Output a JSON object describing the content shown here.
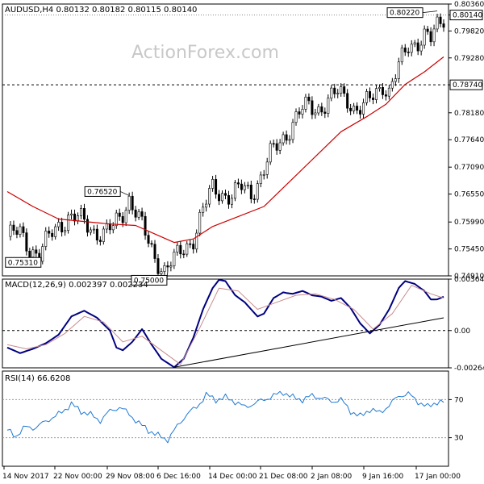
{
  "watermark": "ActionForex.com",
  "chart_data": [
    {
      "type": "candlestick",
      "title": "AUDUSD,H4  0.80132 0.80182 0.80115 0.80140",
      "ylim": [
        0.7491,
        0.8036
      ],
      "yticks": [
        0.8036,
        0.8014,
        0.7982,
        0.7928,
        0.7874,
        0.7818,
        0.7764,
        0.7709,
        0.7655,
        0.7599,
        0.7545,
        0.7491
      ],
      "ytick_labels": [
        "0.80360",
        "0.80140",
        "0.79820",
        "0.79280",
        "0.78740",
        "0.78180",
        "0.77640",
        "0.77090",
        "0.76550",
        "0.75990",
        "0.75450",
        "0.74910"
      ],
      "x_categories": [
        "14 Nov 2017",
        "22 Nov 00:00",
        "29 Nov 08:00",
        "6 Dec 16:00",
        "14 Dec 00:00",
        "21 Dec 08:00",
        "2 Jan 08:00",
        "9 Jan 16:00",
        "17 Jan 00:00"
      ],
      "price_path": [
        [
          0,
          0.757
        ],
        [
          4,
          0.7575
        ],
        [
          7,
          0.755
        ],
        [
          10,
          0.7533
        ],
        [
          13,
          0.7565
        ],
        [
          16,
          0.7595
        ],
        [
          19,
          0.761
        ],
        [
          23,
          0.76
        ],
        [
          27,
          0.7585
        ],
        [
          30,
          0.7575
        ],
        [
          33,
          0.7585
        ],
        [
          36,
          0.762
        ],
        [
          38,
          0.765
        ],
        [
          40,
          0.762
        ],
        [
          43,
          0.757
        ],
        [
          46,
          0.753
        ],
        [
          49,
          0.7505
        ],
        [
          52,
          0.752
        ],
        [
          55,
          0.7545
        ],
        [
          58,
          0.757
        ],
        [
          61,
          0.762
        ],
        [
          64,
          0.7665
        ],
        [
          67,
          0.766
        ],
        [
          70,
          0.765
        ],
        [
          73,
          0.7665
        ],
        [
          76,
          0.766
        ],
        [
          79,
          0.769
        ],
        [
          82,
          0.773
        ],
        [
          85,
          0.776
        ],
        [
          88,
          0.779
        ],
        [
          91,
          0.7815
        ],
        [
          94,
          0.783
        ],
        [
          97,
          0.783
        ],
        [
          100,
          0.784
        ],
        [
          103,
          0.7855
        ],
        [
          106,
          0.785
        ],
        [
          108,
          0.783
        ],
        [
          111,
          0.7825
        ],
        [
          114,
          0.785
        ],
        [
          117,
          0.788
        ],
        [
          119,
          0.786
        ],
        [
          122,
          0.7905
        ],
        [
          125,
          0.7955
        ],
        [
          128,
          0.7965
        ],
        [
          130,
          0.797
        ],
        [
          132,
          0.796
        ],
        [
          134,
          0.799
        ],
        [
          136,
          0.8014
        ]
      ],
      "moving_average": [
        [
          0,
          0.766
        ],
        [
          8,
          0.763
        ],
        [
          16,
          0.7605
        ],
        [
          24,
          0.76
        ],
        [
          32,
          0.7595
        ],
        [
          40,
          0.7592
        ],
        [
          46,
          0.7575
        ],
        [
          52,
          0.7558
        ],
        [
          58,
          0.7565
        ],
        [
          64,
          0.759
        ],
        [
          72,
          0.761
        ],
        [
          80,
          0.763
        ],
        [
          88,
          0.768
        ],
        [
          96,
          0.773
        ],
        [
          104,
          0.778
        ],
        [
          112,
          0.781
        ],
        [
          118,
          0.7835
        ],
        [
          124,
          0.7875
        ],
        [
          130,
          0.79
        ],
        [
          136,
          0.793
        ]
      ],
      "horizontal_line": {
        "value": 0.7874,
        "label": "0.78740",
        "style": "dashed"
      },
      "annotations": [
        {
          "label": "0.80220",
          "x": 134,
          "value": 0.8022
        },
        {
          "label": "0.76520",
          "x": 38,
          "value": 0.7652
        },
        {
          "label": "0.75310",
          "x": 10,
          "value": 0.7531
        },
        {
          "label": "0.75000",
          "x": 50,
          "value": 0.75
        }
      ]
    },
    {
      "type": "line",
      "title": "MACD(12,26,9) 0.002397 0.002234",
      "ylim": [
        -0.00264,
        0.00364
      ],
      "ytick_labels": [
        "0.00364",
        "0.00",
        "-0.00264"
      ],
      "series": [
        {
          "name": "MACD",
          "points": [
            [
              0,
              -0.0012
            ],
            [
              4,
              -0.0016
            ],
            [
              8,
              -0.0013
            ],
            [
              12,
              -0.0009
            ],
            [
              16,
              -0.0003
            ],
            [
              20,
              0.001
            ],
            [
              24,
              0.0014
            ],
            [
              28,
              0.0009
            ],
            [
              32,
              0.0
            ],
            [
              34,
              -0.0012
            ],
            [
              36,
              -0.0014
            ],
            [
              39,
              -0.0008
            ],
            [
              42,
              0.0001
            ],
            [
              45,
              -0.001
            ],
            [
              48,
              -0.002
            ],
            [
              52,
              -0.0026
            ],
            [
              55,
              -0.002
            ],
            [
              58,
              -0.0005
            ],
            [
              61,
              0.0015
            ],
            [
              64,
              0.003
            ],
            [
              66,
              0.0036
            ],
            [
              68,
              0.0035
            ],
            [
              71,
              0.0025
            ],
            [
              74,
              0.002
            ],
            [
              76,
              0.0015
            ],
            [
              78,
              0.001
            ],
            [
              80,
              0.0012
            ],
            [
              83,
              0.0023
            ],
            [
              86,
              0.0027
            ],
            [
              89,
              0.0026
            ],
            [
              92,
              0.0028
            ],
            [
              95,
              0.0025
            ],
            [
              98,
              0.0024
            ],
            [
              101,
              0.0021
            ],
            [
              104,
              0.0023
            ],
            [
              107,
              0.0016
            ],
            [
              110,
              0.0005
            ],
            [
              113,
              -0.0002
            ],
            [
              116,
              0.0004
            ],
            [
              119,
              0.0015
            ],
            [
              122,
              0.003
            ],
            [
              124,
              0.0035
            ],
            [
              127,
              0.0033
            ],
            [
              130,
              0.0028
            ],
            [
              132,
              0.0022
            ],
            [
              134,
              0.0022
            ],
            [
              136,
              0.0024
            ]
          ]
        },
        {
          "name": "Signal",
          "points": [
            [
              0,
              -0.001
            ],
            [
              6,
              -0.0013
            ],
            [
              12,
              -0.001
            ],
            [
              18,
              -0.0002
            ],
            [
              24,
              0.001
            ],
            [
              30,
              0.0006
            ],
            [
              36,
              -0.0008
            ],
            [
              42,
              -0.0004
            ],
            [
              48,
              -0.0014
            ],
            [
              54,
              -0.0024
            ],
            [
              60,
              0.0002
            ],
            [
              66,
              0.003
            ],
            [
              72,
              0.0028
            ],
            [
              78,
              0.0015
            ],
            [
              84,
              0.002
            ],
            [
              90,
              0.0025
            ],
            [
              96,
              0.0026
            ],
            [
              102,
              0.0022
            ],
            [
              108,
              0.0015
            ],
            [
              114,
              0.0001
            ],
            [
              120,
              0.0012
            ],
            [
              126,
              0.0032
            ],
            [
              132,
              0.0026
            ],
            [
              136,
              0.0023
            ]
          ]
        },
        {
          "name": "Trendline",
          "points": [
            [
              52,
              -0.0026
            ],
            [
              136,
              0.0009
            ]
          ]
        }
      ]
    },
    {
      "type": "line",
      "title": "RSI(14) 66.6208",
      "ylim": [
        0,
        100
      ],
      "ytick_labels": [
        "70",
        "30"
      ],
      "series": [
        {
          "name": "RSI",
          "points": [
            [
              0,
              38
            ],
            [
              3,
              32
            ],
            [
              6,
              42
            ],
            [
              9,
              40
            ],
            [
              12,
              48
            ],
            [
              15,
              52
            ],
            [
              18,
              60
            ],
            [
              20,
              65
            ],
            [
              23,
              58
            ],
            [
              26,
              54
            ],
            [
              29,
              48
            ],
            [
              32,
              58
            ],
            [
              35,
              62
            ],
            [
              38,
              55
            ],
            [
              41,
              45
            ],
            [
              44,
              38
            ],
            [
              47,
              32
            ],
            [
              50,
              28
            ],
            [
              53,
              42
            ],
            [
              56,
              55
            ],
            [
              59,
              62
            ],
            [
              62,
              75
            ],
            [
              65,
              70
            ],
            [
              68,
              72
            ],
            [
              71,
              68
            ],
            [
              74,
              62
            ],
            [
              77,
              66
            ],
            [
              80,
              70
            ],
            [
              83,
              74
            ],
            [
              86,
              78
            ],
            [
              89,
              72
            ],
            [
              92,
              70
            ],
            [
              95,
              74
            ],
            [
              98,
              72
            ],
            [
              101,
              68
            ],
            [
              104,
              70
            ],
            [
              107,
              58
            ],
            [
              110,
              52
            ],
            [
              113,
              60
            ],
            [
              116,
              56
            ],
            [
              119,
              64
            ],
            [
              122,
              74
            ],
            [
              125,
              76
            ],
            [
              128,
              68
            ],
            [
              131,
              62
            ],
            [
              134,
              68
            ],
            [
              136,
              67
            ]
          ]
        }
      ]
    }
  ]
}
